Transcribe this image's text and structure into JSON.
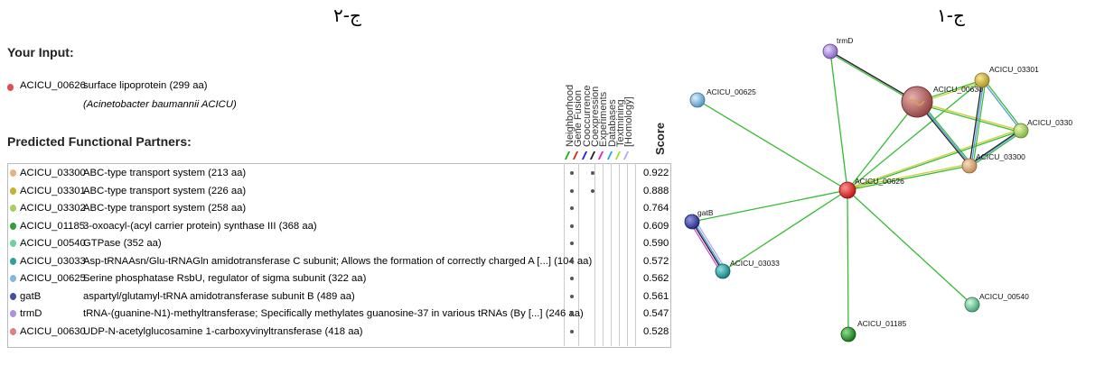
{
  "panel_left": {
    "label": "ج-۲"
  },
  "panel_right": {
    "label": "ج-۱"
  },
  "input": {
    "title": "Your Input:",
    "id": "ACICU_00626",
    "description": "surface lipoprotein (299 aa)",
    "organism": "(Acinetobacter baumannii ACICU)",
    "color": "#e05050"
  },
  "partners_title": "Predicted Functional Partners:",
  "evidence_headers": [
    {
      "label": "Neighborhood",
      "color": "#22aa22"
    },
    {
      "label": "Gene Fusion",
      "color": "#dd2222"
    },
    {
      "label": "Cooccurrence",
      "color": "#2222dd"
    },
    {
      "label": "Coexpression",
      "color": "#222222"
    },
    {
      "label": "Experiments",
      "color": "#dd22dd"
    },
    {
      "label": "Databases",
      "color": "#22aadd"
    },
    {
      "label": "Textmining",
      "color": "#aadd22"
    },
    {
      "label": "[Homology]",
      "color": "#aaaaff"
    }
  ],
  "score_header": "Score",
  "partners": [
    {
      "id": "ACICU_03300",
      "description": "ABC-type transport system (213 aa)",
      "color": "#e8b080",
      "score": "0.922",
      "evidence": [
        0,
        2
      ]
    },
    {
      "id": "ACICU_03301",
      "description": "ABC-type transport system (226 aa)",
      "color": "#c8b030",
      "score": "0.888",
      "evidence": [
        0,
        2
      ]
    },
    {
      "id": "ACICU_03302",
      "description": "ABC-type transport system (258 aa)",
      "color": "#a8d060",
      "score": "0.764",
      "evidence": [
        0
      ]
    },
    {
      "id": "ACICU_01185",
      "description": "3-oxoacyl-(acyl carrier protein) synthase III (368 aa)",
      "color": "#30a030",
      "score": "0.609",
      "evidence": [
        0
      ]
    },
    {
      "id": "ACICU_00540",
      "description": "GTPase (352 aa)",
      "color": "#70d0a0",
      "score": "0.590",
      "evidence": [
        0
      ]
    },
    {
      "id": "ACICU_03033",
      "description": "Asp-tRNAAsn/Glu-tRNAGln amidotransferase C subunit; Allows the formation of correctly charged A [...] (104 aa)",
      "color": "#30a0a0",
      "score": "0.572",
      "evidence": [
        0
      ]
    },
    {
      "id": "ACICU_00625",
      "description": "Serine phosphatase RsbU, regulator of sigma subunit (322 aa)",
      "color": "#80b8e0",
      "score": "0.562",
      "evidence": [
        0
      ]
    },
    {
      "id": "gatB",
      "description": "aspartyl/glutamyl-tRNA amidotransferase subunit B (489 aa)",
      "color": "#4050a0",
      "score": "0.561",
      "evidence": [
        0
      ]
    },
    {
      "id": "trmD",
      "description": "tRNA-(guanine-N1)-methyltransferase; Specifically methylates guanosine-37 in various tRNAs (By [...] (246 aa)",
      "color": "#b090e0",
      "score": "0.547",
      "evidence": [
        0
      ]
    },
    {
      "id": "ACICU_00630",
      "description": "UDP-N-acetylglucosamine 1-carboxyvinyltransferase (418 aa)",
      "color": "#e08080",
      "score": "0.528",
      "evidence": [
        0
      ]
    }
  ],
  "network": {
    "nodes": [
      {
        "id": "n_626",
        "label": "ACICU_00626",
        "color": "#d02020"
      },
      {
        "id": "n_630",
        "label": "ACICU_00630",
        "color": "#b06060"
      },
      {
        "id": "n_3301",
        "label": "ACICU_03301",
        "color": "#c8b030"
      },
      {
        "id": "n_3302",
        "label": "ACICU_0330",
        "color": "#a8d060"
      },
      {
        "id": "n_3300",
        "label": "ACICU_03300",
        "color": "#e0a870"
      },
      {
        "id": "n_trmD",
        "label": "trmD",
        "color": "#a080d8"
      },
      {
        "id": "n_625",
        "label": "ACICU_00625",
        "color": "#80b8e0"
      },
      {
        "id": "n_gatB",
        "label": "gatB",
        "color": "#3040a0"
      },
      {
        "id": "n_3033",
        "label": "ACICU_03033",
        "color": "#30a0a0"
      },
      {
        "id": "n_540",
        "label": "ACICU_00540",
        "color": "#70d0a0"
      },
      {
        "id": "n_1185",
        "label": "ACICU_01185",
        "color": "#30a030"
      }
    ]
  }
}
